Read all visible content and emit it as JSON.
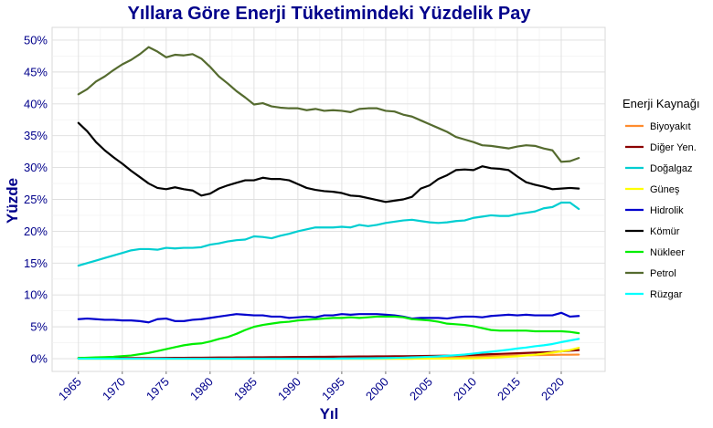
{
  "chart_data": {
    "type": "line",
    "title": "Yıllara Göre Enerji Tüketimindeki Yüzdelik Pay",
    "xlabel": "Yıl",
    "ylabel": "Yüzde",
    "xlim": [
      1962,
      2025
    ],
    "ylim": [
      -2,
      52
    ],
    "x_ticks": [
      1965,
      1970,
      1975,
      1980,
      1985,
      1990,
      1995,
      2000,
      2005,
      2010,
      2015,
      2020
    ],
    "y_ticks": [
      0,
      5,
      10,
      15,
      20,
      25,
      30,
      35,
      40,
      45,
      50
    ],
    "y_tick_labels": [
      "0%",
      "5%",
      "10%",
      "15%",
      "20%",
      "25%",
      "30%",
      "35%",
      "40%",
      "45%",
      "50%"
    ],
    "grid": true,
    "legend": {
      "title": "Enerji Kaynağı",
      "placement": "right"
    },
    "x": [
      1965,
      1966,
      1967,
      1968,
      1969,
      1970,
      1971,
      1972,
      1973,
      1974,
      1975,
      1976,
      1977,
      1978,
      1979,
      1980,
      1981,
      1982,
      1983,
      1984,
      1985,
      1986,
      1987,
      1988,
      1989,
      1990,
      1991,
      1992,
      1993,
      1994,
      1995,
      1996,
      1997,
      1998,
      1999,
      2000,
      2001,
      2002,
      2003,
      2004,
      2005,
      2006,
      2007,
      2008,
      2009,
      2010,
      2011,
      2012,
      2013,
      2014,
      2015,
      2016,
      2017,
      2018,
      2019,
      2020,
      2021,
      2022
    ],
    "series": [
      {
        "name": "Biyoyakıt",
        "color": "#ff8c2e",
        "values": [
          0,
          0,
          0,
          0,
          0,
          0,
          0,
          0,
          0,
          0,
          0,
          0,
          0,
          0,
          0,
          0,
          0,
          0,
          0,
          0,
          0,
          0,
          0,
          0,
          0,
          0,
          0,
          0,
          0,
          0,
          0,
          0,
          0,
          0,
          0,
          0,
          0,
          0,
          0,
          0.05,
          0.08,
          0.12,
          0.18,
          0.24,
          0.3,
          0.35,
          0.38,
          0.4,
          0.44,
          0.48,
          0.5,
          0.52,
          0.55,
          0.58,
          0.6,
          0.62,
          0.62,
          0.64
        ]
      },
      {
        "name": "Diğer Yen.",
        "color": "#8b0000",
        "values": [
          0.1,
          0.1,
          0.1,
          0.1,
          0.1,
          0.1,
          0.1,
          0.1,
          0.1,
          0.1,
          0.12,
          0.13,
          0.14,
          0.15,
          0.16,
          0.17,
          0.18,
          0.19,
          0.2,
          0.21,
          0.22,
          0.23,
          0.24,
          0.25,
          0.26,
          0.27,
          0.28,
          0.29,
          0.3,
          0.31,
          0.32,
          0.33,
          0.34,
          0.35,
          0.36,
          0.37,
          0.38,
          0.39,
          0.4,
          0.42,
          0.44,
          0.46,
          0.48,
          0.5,
          0.55,
          0.6,
          0.65,
          0.7,
          0.75,
          0.8,
          0.85,
          0.9,
          0.95,
          1.0,
          1.05,
          1.15,
          1.25,
          1.35
        ]
      },
      {
        "name": "Doğalgaz",
        "color": "#00ced1",
        "values": [
          14.6,
          15.0,
          15.4,
          15.8,
          16.2,
          16.6,
          17.0,
          17.2,
          17.2,
          17.1,
          17.4,
          17.3,
          17.4,
          17.4,
          17.5,
          17.9,
          18.1,
          18.4,
          18.6,
          18.7,
          19.2,
          19.1,
          18.9,
          19.3,
          19.6,
          20.0,
          20.3,
          20.6,
          20.6,
          20.6,
          20.7,
          20.6,
          21.0,
          20.8,
          21.0,
          21.3,
          21.5,
          21.7,
          21.8,
          21.6,
          21.4,
          21.3,
          21.4,
          21.6,
          21.7,
          22.1,
          22.3,
          22.5,
          22.4,
          22.4,
          22.7,
          22.9,
          23.1,
          23.6,
          23.8,
          24.5,
          24.5,
          23.5
        ]
      },
      {
        "name": "Güneş",
        "color": "#ffff00",
        "values": [
          0,
          0,
          0,
          0,
          0,
          0,
          0,
          0,
          0,
          0,
          0,
          0,
          0,
          0,
          0,
          0,
          0,
          0,
          0,
          0,
          0,
          0,
          0,
          0,
          0,
          0,
          0,
          0,
          0,
          0,
          0,
          0,
          0,
          0,
          0,
          0,
          0,
          0,
          0,
          0,
          0,
          0,
          0.01,
          0.02,
          0.03,
          0.05,
          0.1,
          0.15,
          0.22,
          0.3,
          0.38,
          0.5,
          0.62,
          0.78,
          0.95,
          1.15,
          1.35,
          1.7
        ]
      },
      {
        "name": "Hidrolik",
        "color": "#0000cd",
        "values": [
          6.2,
          6.3,
          6.2,
          6.1,
          6.1,
          6.0,
          6.0,
          5.9,
          5.7,
          6.2,
          6.3,
          5.9,
          5.9,
          6.1,
          6.2,
          6.4,
          6.6,
          6.8,
          7.0,
          6.9,
          6.8,
          6.8,
          6.6,
          6.6,
          6.4,
          6.5,
          6.6,
          6.5,
          6.8,
          6.8,
          7.0,
          6.9,
          7.0,
          7.0,
          7.0,
          6.9,
          6.8,
          6.6,
          6.3,
          6.4,
          6.4,
          6.4,
          6.3,
          6.5,
          6.6,
          6.6,
          6.5,
          6.7,
          6.8,
          6.9,
          6.8,
          6.9,
          6.8,
          6.8,
          6.8,
          7.2,
          6.6,
          6.7
        ]
      },
      {
        "name": "Kömür",
        "color": "#000000",
        "values": [
          37.0,
          35.7,
          34.0,
          32.7,
          31.6,
          30.6,
          29.5,
          28.5,
          27.5,
          26.8,
          26.6,
          26.9,
          26.6,
          26.4,
          25.6,
          25.9,
          26.7,
          27.2,
          27.6,
          28.0,
          28.0,
          28.4,
          28.2,
          28.2,
          28.0,
          27.4,
          26.8,
          26.5,
          26.3,
          26.2,
          26.0,
          25.6,
          25.5,
          25.2,
          24.9,
          24.6,
          24.8,
          25.0,
          25.4,
          26.7,
          27.2,
          28.2,
          28.8,
          29.6,
          29.7,
          29.6,
          30.2,
          29.9,
          29.8,
          29.6,
          28.6,
          27.7,
          27.3,
          27.0,
          26.6,
          26.7,
          26.8,
          26.7
        ]
      },
      {
        "name": "Nükleer",
        "color": "#00ee00",
        "values": [
          0.1,
          0.15,
          0.2,
          0.25,
          0.3,
          0.4,
          0.5,
          0.7,
          0.9,
          1.2,
          1.5,
          1.8,
          2.1,
          2.3,
          2.4,
          2.7,
          3.1,
          3.4,
          3.9,
          4.5,
          5.0,
          5.3,
          5.5,
          5.7,
          5.8,
          6.0,
          6.1,
          6.2,
          6.3,
          6.4,
          6.4,
          6.5,
          6.4,
          6.5,
          6.6,
          6.6,
          6.6,
          6.5,
          6.2,
          6.1,
          6.0,
          5.8,
          5.5,
          5.4,
          5.3,
          5.1,
          4.8,
          4.5,
          4.4,
          4.4,
          4.4,
          4.4,
          4.3,
          4.3,
          4.3,
          4.3,
          4.2,
          4.0
        ]
      },
      {
        "name": "Petrol",
        "color": "#556b2f",
        "values": [
          41.5,
          42.3,
          43.5,
          44.3,
          45.3,
          46.2,
          46.9,
          47.8,
          48.9,
          48.2,
          47.3,
          47.7,
          47.6,
          47.8,
          47.1,
          45.8,
          44.3,
          43.2,
          42.0,
          41.0,
          39.9,
          40.1,
          39.6,
          39.4,
          39.3,
          39.3,
          39.0,
          39.2,
          38.9,
          39.0,
          38.9,
          38.7,
          39.2,
          39.3,
          39.3,
          38.9,
          38.8,
          38.3,
          38.0,
          37.4,
          36.8,
          36.2,
          35.6,
          34.8,
          34.4,
          34.0,
          33.5,
          33.4,
          33.2,
          33.0,
          33.3,
          33.5,
          33.4,
          33.0,
          32.7,
          30.9,
          31.0,
          31.5
        ]
      },
      {
        "name": "Rüzgar",
        "color": "#00ffff",
        "values": [
          0,
          0,
          0,
          0,
          0,
          0,
          0,
          0,
          0,
          0,
          0,
          0,
          0,
          0,
          0,
          0,
          0,
          0,
          0,
          0,
          0,
          0,
          0,
          0,
          0,
          0,
          0,
          0,
          0,
          0,
          0.02,
          0.03,
          0.04,
          0.06,
          0.08,
          0.1,
          0.12,
          0.16,
          0.2,
          0.25,
          0.3,
          0.36,
          0.45,
          0.55,
          0.65,
          0.8,
          0.95,
          1.1,
          1.25,
          1.4,
          1.6,
          1.75,
          1.95,
          2.1,
          2.3,
          2.6,
          2.85,
          3.1
        ]
      }
    ]
  }
}
